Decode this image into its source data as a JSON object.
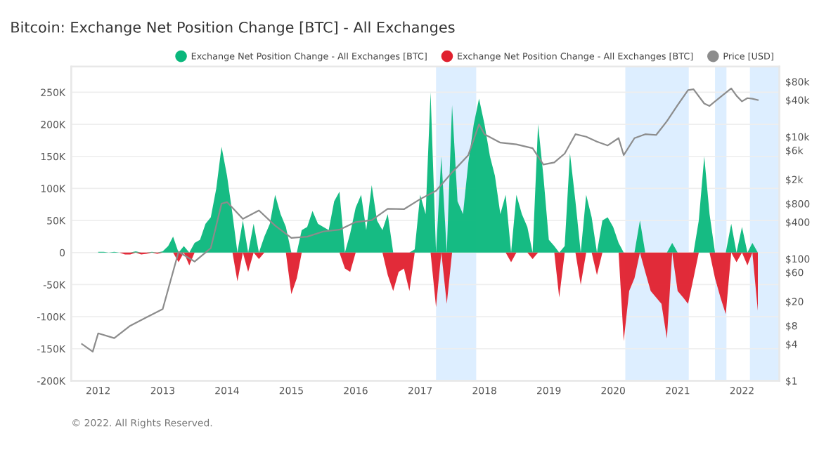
{
  "chart_data": {
    "type": "area",
    "title": "Bitcoin: Exchange Net Position Change [BTC] - All Exchanges",
    "annotations": [
      "© 2022. All Rights Reserved."
    ],
    "x": [
      "2012-01",
      "2012-02",
      "2012-03",
      "2012-04",
      "2012-05",
      "2012-06",
      "2012-07",
      "2012-08",
      "2012-09",
      "2012-10",
      "2012-11",
      "2012-12",
      "2013-01",
      "2013-02",
      "2013-03",
      "2013-04",
      "2013-05",
      "2013-06",
      "2013-07",
      "2013-08",
      "2013-09",
      "2013-10",
      "2013-11",
      "2013-12",
      "2014-01",
      "2014-02",
      "2014-03",
      "2014-04",
      "2014-05",
      "2014-06",
      "2014-07",
      "2014-08",
      "2014-09",
      "2014-10",
      "2014-11",
      "2014-12",
      "2015-01",
      "2015-02",
      "2015-03",
      "2015-04",
      "2015-05",
      "2015-06",
      "2015-07",
      "2015-08",
      "2015-09",
      "2015-10",
      "2015-11",
      "2015-12",
      "2016-01",
      "2016-02",
      "2016-03",
      "2016-04",
      "2016-05",
      "2016-06",
      "2016-07",
      "2016-08",
      "2016-09",
      "2016-10",
      "2016-11",
      "2016-12",
      "2017-01",
      "2017-02",
      "2017-03",
      "2017-04",
      "2017-05",
      "2017-06",
      "2017-07",
      "2017-08",
      "2017-09",
      "2017-10",
      "2017-11",
      "2017-12",
      "2018-01",
      "2018-02",
      "2018-03",
      "2018-04",
      "2018-05",
      "2018-06",
      "2018-07",
      "2018-08",
      "2018-09",
      "2018-10",
      "2018-11",
      "2018-12",
      "2019-01",
      "2019-02",
      "2019-03",
      "2019-04",
      "2019-05",
      "2019-06",
      "2019-07",
      "2019-08",
      "2019-09",
      "2019-10",
      "2019-11",
      "2019-12",
      "2020-01",
      "2020-02",
      "2020-03",
      "2020-04",
      "2020-05",
      "2020-06",
      "2020-07",
      "2020-08",
      "2020-09",
      "2020-10",
      "2020-11",
      "2020-12",
      "2021-01",
      "2021-02",
      "2021-03",
      "2021-04",
      "2021-05",
      "2021-06",
      "2021-07",
      "2021-08",
      "2021-09",
      "2021-10",
      "2021-11",
      "2021-12",
      "2022-01",
      "2022-02",
      "2022-03",
      "2022-04"
    ],
    "series": [
      {
        "name": "Exchange Net Position Change - All Exchanges [BTC]",
        "color": "#0ab77c",
        "values": [
          1000,
          1000,
          0,
          1000,
          0,
          0,
          0,
          2000,
          0,
          0,
          1000,
          0,
          2000,
          10000,
          25000,
          0,
          10000,
          0,
          15000,
          20000,
          45000,
          55000,
          100000,
          165000,
          120000,
          60000,
          0,
          50000,
          0,
          45000,
          0,
          25000,
          45000,
          90000,
          60000,
          40000,
          0,
          0,
          35000,
          40000,
          65000,
          45000,
          40000,
          35000,
          80000,
          95000,
          0,
          30000,
          70000,
          90000,
          35000,
          105000,
          50000,
          35000,
          60000,
          0,
          0,
          0,
          0,
          5000,
          90000,
          60000,
          250000,
          0,
          150000,
          0,
          230000,
          80000,
          60000,
          140000,
          200000,
          240000,
          200000,
          150000,
          120000,
          60000,
          90000,
          0,
          90000,
          60000,
          40000,
          0,
          200000,
          120000,
          20000,
          10000,
          0,
          10000,
          155000,
          80000,
          0,
          90000,
          55000,
          0,
          50000,
          55000,
          40000,
          15000,
          0,
          0,
          0,
          50000,
          0,
          0,
          0,
          0,
          0,
          15000,
          0,
          0,
          0,
          0,
          50000,
          150000,
          60000,
          0,
          0,
          0,
          45000,
          0,
          40000,
          0,
          15000,
          0
        ]
      },
      {
        "name": "Exchange Net Position Change - All Exchanges [BTC]",
        "color": "#e0202e",
        "values": [
          0,
          0,
          0,
          0,
          0,
          -3000,
          -3000,
          0,
          -3000,
          -2000,
          0,
          -2000,
          0,
          0,
          0,
          -15000,
          0,
          -20000,
          0,
          0,
          0,
          0,
          0,
          0,
          0,
          0,
          -45000,
          0,
          -30000,
          0,
          -10000,
          0,
          0,
          0,
          0,
          0,
          -65000,
          -40000,
          0,
          0,
          0,
          0,
          0,
          0,
          0,
          0,
          -25000,
          -30000,
          0,
          0,
          0,
          0,
          0,
          0,
          -35000,
          -60000,
          -30000,
          -25000,
          -60000,
          0,
          0,
          0,
          0,
          -85000,
          0,
          -80000,
          0,
          0,
          0,
          0,
          0,
          0,
          0,
          0,
          0,
          0,
          0,
          -15000,
          0,
          0,
          0,
          -10000,
          0,
          0,
          0,
          0,
          -70000,
          0,
          0,
          0,
          -50000,
          0,
          0,
          -35000,
          0,
          0,
          0,
          0,
          -138000,
          -60000,
          -40000,
          0,
          -30000,
          -60000,
          -70000,
          -80000,
          -134000,
          0,
          -60000,
          -70000,
          -80000,
          -40000,
          0,
          0,
          0,
          -40000,
          -70000,
          -96000,
          0,
          -15000,
          0,
          -20000,
          0,
          -91000
        ]
      },
      {
        "name": "Price [USD]",
        "type": "line",
        "axis": "y2",
        "color": "#8c8c8c",
        "x": [
          "2011-10",
          "2011-12",
          "2012-01",
          "2012-04",
          "2012-07",
          "2012-10",
          "2013-01",
          "2013-04",
          "2013-07",
          "2013-10",
          "2013-12",
          "2014-01",
          "2014-04",
          "2014-07",
          "2014-10",
          "2015-01",
          "2015-04",
          "2015-07",
          "2015-10",
          "2016-01",
          "2016-04",
          "2016-07",
          "2016-10",
          "2017-01",
          "2017-04",
          "2017-07",
          "2017-10",
          "2017-12",
          "2018-01",
          "2018-04",
          "2018-07",
          "2018-10",
          "2018-12",
          "2019-02",
          "2019-04",
          "2019-06",
          "2019-08",
          "2019-10",
          "2019-12",
          "2020-02",
          "2020-03",
          "2020-05",
          "2020-07",
          "2020-09",
          "2020-11",
          "2021-01",
          "2021-03",
          "2021-04",
          "2021-06",
          "2021-07",
          "2021-09",
          "2021-11",
          "2021-12",
          "2022-01",
          "2022-02",
          "2022-03",
          "2022-04"
        ],
        "values": [
          4,
          3,
          6,
          5,
          8,
          11,
          15,
          130,
          90,
          150,
          800,
          850,
          450,
          620,
          350,
          220,
          230,
          280,
          300,
          400,
          430,
          660,
          650,
          950,
          1300,
          2600,
          5000,
          16000,
          11000,
          8000,
          7500,
          6500,
          3500,
          3800,
          5300,
          11000,
          10000,
          8300,
          7200,
          9500,
          5000,
          9500,
          11000,
          10700,
          18000,
          33000,
          58000,
          60000,
          35000,
          32000,
          45000,
          62000,
          47000,
          38000,
          43000,
          42000,
          40000
        ]
      }
    ],
    "xlim": [
      "2011-08",
      "2022-08"
    ],
    "xticks": [
      {
        "value": "2012-01-01",
        "label": "2012"
      },
      {
        "value": "2013-01-01",
        "label": "2013"
      },
      {
        "value": "2014-01-01",
        "label": "2014"
      },
      {
        "value": "2015-01-01",
        "label": "2015"
      },
      {
        "value": "2016-01-01",
        "label": "2016"
      },
      {
        "value": "2017-01-01",
        "label": "2017"
      },
      {
        "value": "2018-01-01",
        "label": "2018"
      },
      {
        "value": "2019-01-01",
        "label": "2019"
      },
      {
        "value": "2020-01-01",
        "label": "2020"
      },
      {
        "value": "2021-01-01",
        "label": "2021"
      },
      {
        "value": "2022-01-01",
        "label": "2022"
      }
    ],
    "ylim": [
      -200000,
      290000
    ],
    "yticks": [
      {
        "value": -200000,
        "label": "-200K"
      },
      {
        "value": -150000,
        "label": "-150K"
      },
      {
        "value": -100000,
        "label": "-100K"
      },
      {
        "value": -50000,
        "label": "-50K"
      },
      0,
      {
        "value": 50000,
        "label": "50K"
      },
      {
        "value": 100000,
        "label": "100K"
      },
      {
        "value": 150000,
        "label": "150K"
      },
      {
        "value": 200000,
        "label": "200K"
      },
      {
        "value": 250000,
        "label": "250K"
      }
    ],
    "log": "y2",
    "y2lim": [
      1,
      141000
    ],
    "y2ticks": [
      {
        "value": 1,
        "label": "$1"
      },
      {
        "value": 4,
        "label": "$4"
      },
      {
        "value": 8,
        "label": "$8"
      },
      {
        "value": 20,
        "label": "$20"
      },
      {
        "value": 60,
        "label": "$60"
      },
      {
        "value": 100,
        "label": "$100"
      },
      {
        "value": 400,
        "label": "$400"
      },
      {
        "value": 800,
        "label": "$800"
      },
      {
        "value": 2000,
        "label": "$2k"
      },
      {
        "value": 6000,
        "label": "$6k"
      },
      {
        "value": 10000,
        "label": "$10k"
      },
      {
        "value": 40000,
        "label": "$40k"
      },
      {
        "value": 80000,
        "label": "$80k"
      }
    ],
    "bands": [
      {
        "axis": "x",
        "from": "2017-04-01",
        "to": "2017-11-15",
        "color": "#ddeeff"
      },
      {
        "axis": "x",
        "from": "2020-03-10",
        "to": "2021-03-05",
        "color": "#ddeeff"
      },
      {
        "axis": "x",
        "from": "2021-08-01",
        "to": "2021-10-05",
        "color": "#ddeeff"
      },
      {
        "axis": "x",
        "from": "2022-02-15",
        "to": "2022-08-01",
        "color": "#ddeeff"
      }
    ],
    "grid": "y",
    "legend": "top",
    "marker": "none",
    "line_style": "solid"
  }
}
